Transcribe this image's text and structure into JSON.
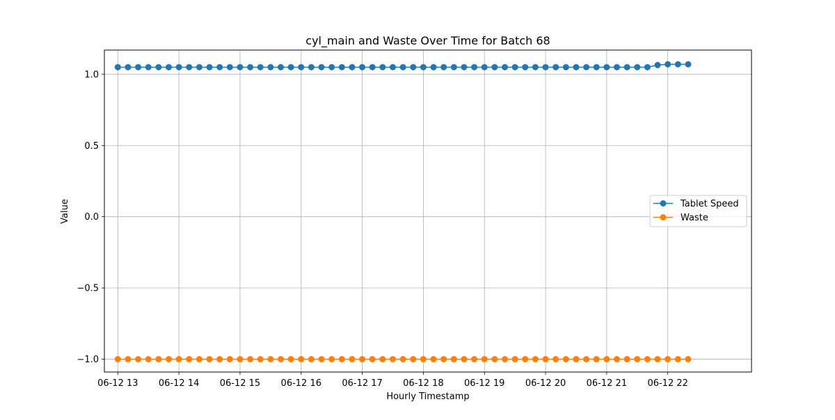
{
  "chart_data": {
    "type": "line",
    "title": "cyl_main and Waste Over Time for Batch 68",
    "xlabel": "Hourly Timestamp",
    "ylabel": "Value",
    "x_ticks": [
      "06-12 13",
      "06-12 14",
      "06-12 15",
      "06-12 16",
      "06-12 17",
      "06-12 18",
      "06-12 19",
      "06-12 20",
      "06-12 21",
      "06-12 22"
    ],
    "x_start": "2023-06-12 13:00",
    "x_step_minutes": 10,
    "y_ticks": [
      1.0,
      0.5,
      0.0,
      -0.5,
      -1.0
    ],
    "y_tick_labels": [
      "1.0",
      "0.5",
      "0.0",
      "−0.5",
      "−1.0"
    ],
    "ylim": [
      -1.09,
      1.17
    ],
    "xlim_hours": [
      12.78,
      23.37
    ],
    "grid": true,
    "legend_position": "center right",
    "series": [
      {
        "name": "Tablet Speed",
        "color": "#1f77b4",
        "values": [
          1.05,
          1.05,
          1.05,
          1.05,
          1.05,
          1.05,
          1.05,
          1.05,
          1.05,
          1.05,
          1.05,
          1.05,
          1.05,
          1.05,
          1.05,
          1.05,
          1.05,
          1.05,
          1.05,
          1.05,
          1.05,
          1.05,
          1.05,
          1.05,
          1.05,
          1.05,
          1.05,
          1.05,
          1.05,
          1.05,
          1.05,
          1.05,
          1.05,
          1.05,
          1.05,
          1.05,
          1.05,
          1.05,
          1.05,
          1.05,
          1.05,
          1.05,
          1.05,
          1.05,
          1.05,
          1.05,
          1.05,
          1.05,
          1.05,
          1.05,
          1.05,
          1.05,
          1.05,
          1.065,
          1.07,
          1.07,
          1.07
        ]
      },
      {
        "name": "Waste",
        "color": "#ff7f0e",
        "values": [
          -1,
          -1,
          -1,
          -1,
          -1,
          -1,
          -1,
          -1,
          -1,
          -1,
          -1,
          -1,
          -1,
          -1,
          -1,
          -1,
          -1,
          -1,
          -1,
          -1,
          -1,
          -1,
          -1,
          -1,
          -1,
          -1,
          -1,
          -1,
          -1,
          -1,
          -1,
          -1,
          -1,
          -1,
          -1,
          -1,
          -1,
          -1,
          -1,
          -1,
          -1,
          -1,
          -1,
          -1,
          -1,
          -1,
          -1,
          -1,
          -1,
          -1,
          -1,
          -1,
          -1,
          -1,
          -1,
          -1,
          -1
        ]
      }
    ]
  }
}
